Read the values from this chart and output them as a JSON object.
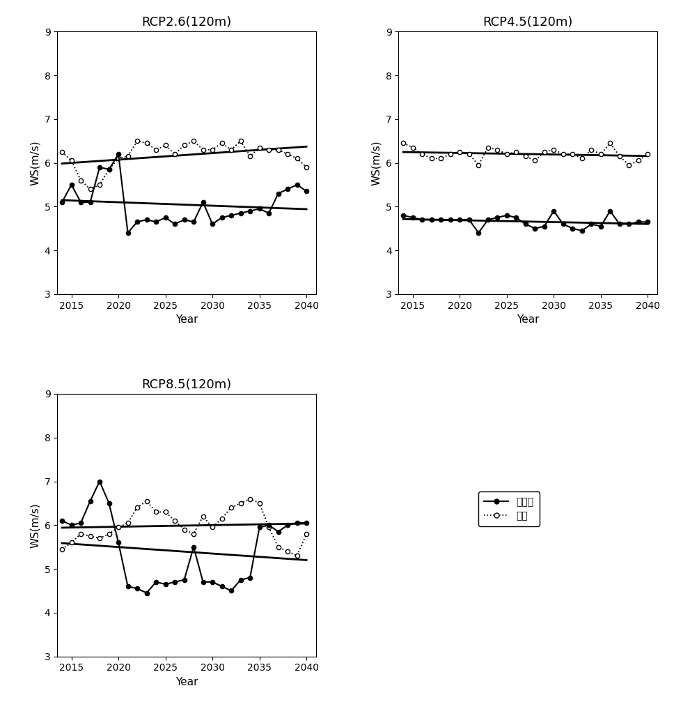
{
  "years": [
    2014,
    2015,
    2016,
    2017,
    2018,
    2019,
    2020,
    2021,
    2022,
    2023,
    2024,
    2025,
    2026,
    2027,
    2028,
    2029,
    2030,
    2031,
    2032,
    2033,
    2034,
    2035,
    2036,
    2037,
    2038,
    2039,
    2040
  ],
  "rcp26_daegwallyeong": [
    5.1,
    5.5,
    5.1,
    5.1,
    5.9,
    5.85,
    6.2,
    4.4,
    4.65,
    4.7,
    4.65,
    4.75,
    4.6,
    4.7,
    4.65,
    5.1,
    4.6,
    4.75,
    4.8,
    4.85,
    4.9,
    4.95,
    4.85,
    5.3,
    5.4,
    5.5,
    5.35
  ],
  "rcp26_yeongyang": [
    6.25,
    6.05,
    5.6,
    5.4,
    5.5,
    5.85,
    6.1,
    6.15,
    6.5,
    6.45,
    6.3,
    6.4,
    6.2,
    6.4,
    6.5,
    6.3,
    6.3,
    6.45,
    6.3,
    6.5,
    6.15,
    6.35,
    6.3,
    6.3,
    6.2,
    6.1,
    5.9
  ],
  "rcp45_daegwallyeong": [
    4.8,
    4.75,
    4.7,
    4.7,
    4.7,
    4.7,
    4.7,
    4.7,
    4.4,
    4.7,
    4.75,
    4.8,
    4.75,
    4.6,
    4.5,
    4.55,
    4.9,
    4.6,
    4.5,
    4.45,
    4.6,
    4.55,
    4.9,
    4.6,
    4.6,
    4.65,
    4.65
  ],
  "rcp45_yeongyang": [
    6.45,
    6.35,
    6.2,
    6.1,
    6.1,
    6.2,
    6.25,
    6.2,
    5.95,
    6.35,
    6.3,
    6.2,
    6.25,
    6.15,
    6.05,
    6.25,
    6.3,
    6.2,
    6.2,
    6.1,
    6.3,
    6.2,
    6.45,
    6.15,
    5.95,
    6.05,
    6.2
  ],
  "rcp85_daegwallyeong": [
    6.1,
    6.0,
    6.05,
    6.55,
    7.0,
    6.5,
    5.6,
    4.6,
    4.55,
    4.45,
    4.7,
    4.65,
    4.7,
    4.75,
    5.5,
    4.7,
    4.7,
    4.6,
    4.5,
    4.75,
    4.8,
    5.95,
    6.0,
    5.85,
    6.0,
    6.05,
    6.05
  ],
  "rcp85_yeongyang": [
    5.45,
    5.6,
    5.8,
    5.75,
    5.7,
    5.8,
    5.95,
    6.05,
    6.4,
    6.55,
    6.3,
    6.3,
    6.1,
    5.9,
    5.8,
    6.2,
    5.95,
    6.15,
    6.4,
    6.5,
    6.6,
    6.5,
    5.95,
    5.5,
    5.4,
    5.3,
    5.8
  ],
  "ylim": [
    3,
    9
  ],
  "yticks": [
    3,
    4,
    5,
    6,
    7,
    8,
    9
  ],
  "xlim": [
    2013.5,
    2041
  ],
  "xticks": [
    2015,
    2020,
    2025,
    2030,
    2035,
    2040
  ],
  "titles": [
    "RCP2.6(120m)",
    "RCP4.5(120m)",
    "RCP8.5(120m)"
  ],
  "ylabel": "WS(m/s)",
  "xlabel": "Year",
  "legend_label_daeg": "대관령",
  "legend_label_yeong": "영양",
  "bg_color": "#ffffff"
}
